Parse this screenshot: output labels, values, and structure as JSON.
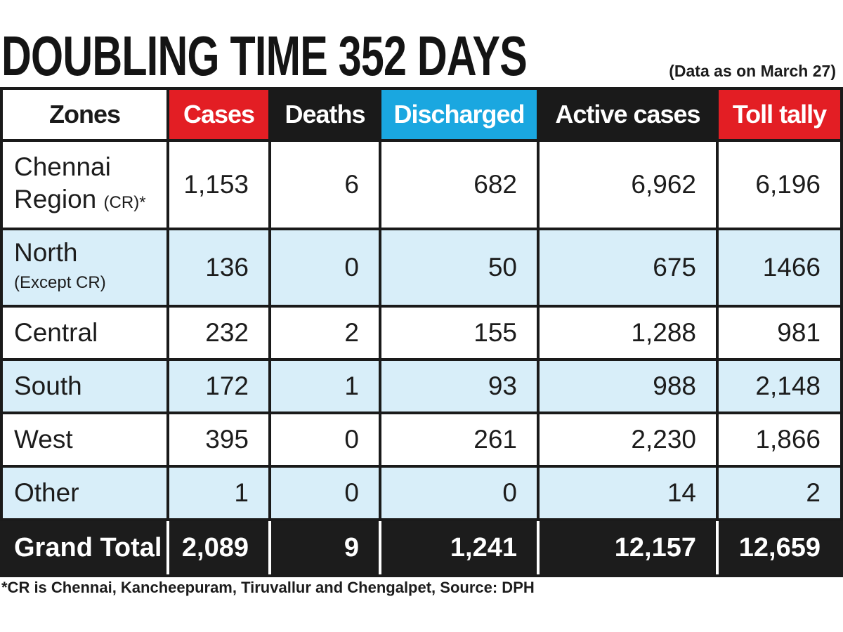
{
  "header": {
    "title": "DOUBLING TIME 352 DAYS",
    "date_note": "(Data as on March 27)"
  },
  "chart_data": {
    "type": "table",
    "columns": [
      "Zones",
      "Cases",
      "Deaths",
      "Discharged",
      "Active cases",
      "Toll tally"
    ],
    "rows": [
      {
        "zone": "Chennai",
        "zone_line2": "Region",
        "zone_sub": "(CR)*",
        "cases": "1,153",
        "deaths": "6",
        "discharged": "682",
        "active": "6,962",
        "toll": "6,196"
      },
      {
        "zone": "North",
        "zone_line2": "",
        "zone_sub": "(Except CR)",
        "cases": "136",
        "deaths": "0",
        "discharged": "50",
        "active": "675",
        "toll": "1466"
      },
      {
        "zone": "Central",
        "zone_line2": "",
        "zone_sub": "",
        "cases": "232",
        "deaths": "2",
        "discharged": "155",
        "active": "1,288",
        "toll": "981"
      },
      {
        "zone": "South",
        "zone_line2": "",
        "zone_sub": "",
        "cases": "172",
        "deaths": "1",
        "discharged": "93",
        "active": "988",
        "toll": "2,148"
      },
      {
        "zone": "West",
        "zone_line2": "",
        "zone_sub": "",
        "cases": "395",
        "deaths": "0",
        "discharged": "261",
        "active": "2,230",
        "toll": "1,866"
      },
      {
        "zone": "Other",
        "zone_line2": "",
        "zone_sub": "",
        "cases": "1",
        "deaths": "0",
        "discharged": "0",
        "active": "14",
        "toll": "2"
      }
    ],
    "total": {
      "zone": "Grand Total",
      "cases": "2,089",
      "deaths": "9",
      "discharged": "1,241",
      "active": "12,157",
      "toll": "12,659"
    }
  },
  "colors": {
    "cases_header": "#e31e24",
    "discharged_header": "#1aa7e0",
    "dark_header": "#1a1a1a",
    "shaded_row": "#d8eef9"
  },
  "footnote": "*CR is Chennai, Kancheepuram, Tiruvallur and Chengalpet, Source: DPH"
}
